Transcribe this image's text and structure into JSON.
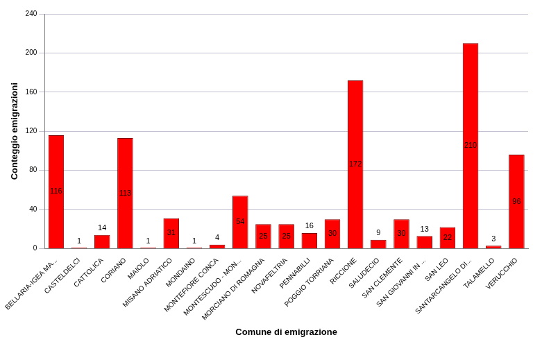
{
  "chart_data": {
    "type": "bar",
    "categories": [
      "BELLARIA-IGEA MA...",
      "CASTELDELCI",
      "CATTOLICA",
      "CORIANO",
      "MAIOLO",
      "MISANO ADRIATICO",
      "MONDAINO",
      "MONTEFIORE CONCA",
      "MONTESCUDO - MON...",
      "MORCIANO DI ROMAGNA",
      "NOVAFELTRIA",
      "PENNABILLI",
      "POGGIO TORRIANA",
      "RICCIONE",
      "SALUDECIO",
      "SAN CLEMENTE",
      "SAN GIOVANNI IN ...",
      "SAN LEO",
      "SANTARCANGELO DI...",
      "TALAMELLO",
      "VERUCCHIO"
    ],
    "values": [
      116,
      1,
      14,
      113,
      1,
      31,
      1,
      4,
      54,
      25,
      25,
      16,
      30,
      172,
      9,
      30,
      13,
      22,
      210,
      3,
      96
    ],
    "color": "#ff0000",
    "x_label": "Comune di emigrazione",
    "y_label": "Conteggio emigrazioni",
    "ylim": [
      0,
      240
    ],
    "yticks": [
      0,
      40,
      80,
      120,
      160,
      200,
      240
    ],
    "grid": true,
    "data_labels": true
  }
}
